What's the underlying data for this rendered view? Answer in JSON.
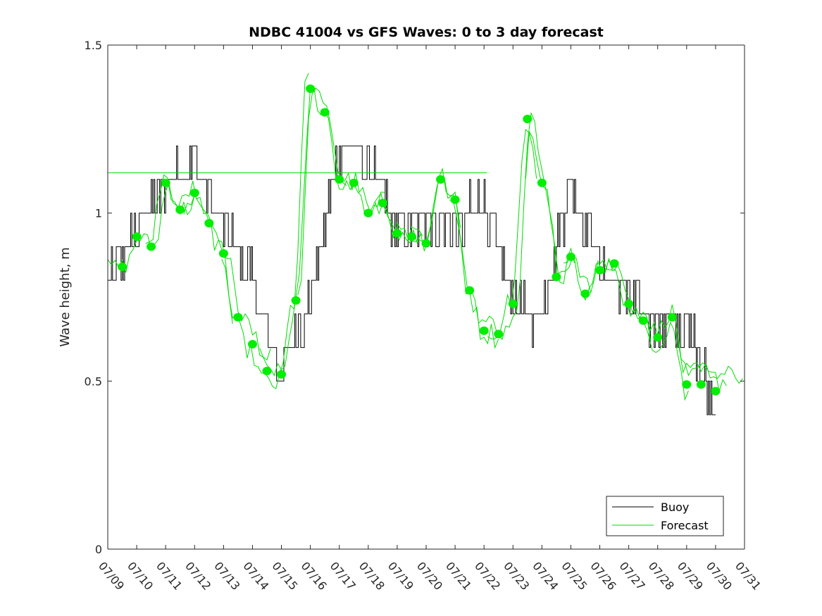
{
  "chart_data": {
    "type": "line",
    "title": "NDBC 41004 vs GFS Waves: 0 to 3 day forecast",
    "xlabel": "",
    "ylabel": "Wave height, m",
    "ylim": [
      0,
      1.5
    ],
    "yticks": [
      "0",
      "0.5",
      "1",
      "1.5"
    ],
    "xticks": [
      "07/09",
      "07/10",
      "07/11",
      "07/12",
      "07/13",
      "07/14",
      "07/15",
      "07/16",
      "07/17",
      "07/18",
      "07/19",
      "07/20",
      "07/21",
      "07/22",
      "07/23",
      "07/24",
      "07/25",
      "07/26",
      "07/27",
      "07/28",
      "07/29",
      "07/30",
      "07/31"
    ],
    "grid": false,
    "legend": {
      "position": "bottom-right",
      "entries": [
        "Buoy",
        "Forecast"
      ]
    },
    "colors": {
      "buoy": "#000000",
      "forecast": "#00dd00",
      "markers": "#00ee00"
    },
    "buoy_day_values": [
      0.77,
      0.95,
      1.1,
      1.15,
      0.95,
      0.8,
      0.52,
      0.75,
      1.2,
      1.15,
      0.95,
      1.0,
      0.95,
      1.05,
      0.72,
      0.7,
      1.1,
      0.85,
      0.75,
      0.68,
      0.65,
      0.45,
      0.5
    ],
    "forecast_markers": [
      {
        "x": 0.5,
        "y": 0.84
      },
      {
        "x": 1.0,
        "y": 0.93
      },
      {
        "x": 1.5,
        "y": 0.9
      },
      {
        "x": 2.0,
        "y": 1.09
      },
      {
        "x": 2.5,
        "y": 1.01
      },
      {
        "x": 3.0,
        "y": 1.06
      },
      {
        "x": 3.5,
        "y": 0.97
      },
      {
        "x": 4.0,
        "y": 0.88
      },
      {
        "x": 4.5,
        "y": 0.69
      },
      {
        "x": 5.0,
        "y": 0.61
      },
      {
        "x": 5.5,
        "y": 0.53
      },
      {
        "x": 6.0,
        "y": 0.52
      },
      {
        "x": 6.5,
        "y": 0.74
      },
      {
        "x": 7.0,
        "y": 1.37
      },
      {
        "x": 7.5,
        "y": 1.3
      },
      {
        "x": 8.0,
        "y": 1.1
      },
      {
        "x": 8.5,
        "y": 1.09
      },
      {
        "x": 9.0,
        "y": 1.0
      },
      {
        "x": 9.5,
        "y": 1.03
      },
      {
        "x": 10.0,
        "y": 0.94
      },
      {
        "x": 10.5,
        "y": 0.93
      },
      {
        "x": 11.0,
        "y": 0.91
      },
      {
        "x": 11.5,
        "y": 1.1
      },
      {
        "x": 12.0,
        "y": 1.04
      },
      {
        "x": 12.5,
        "y": 0.77
      },
      {
        "x": 13.0,
        "y": 0.65
      },
      {
        "x": 13.5,
        "y": 0.64
      },
      {
        "x": 14.0,
        "y": 0.73
      },
      {
        "x": 14.5,
        "y": 1.28
      },
      {
        "x": 15.0,
        "y": 1.09
      },
      {
        "x": 15.5,
        "y": 0.81
      },
      {
        "x": 16.0,
        "y": 0.87
      },
      {
        "x": 16.5,
        "y": 0.76
      },
      {
        "x": 17.0,
        "y": 0.83
      },
      {
        "x": 17.5,
        "y": 0.85
      },
      {
        "x": 18.0,
        "y": 0.73
      },
      {
        "x": 18.5,
        "y": 0.68
      },
      {
        "x": 19.0,
        "y": 0.63
      },
      {
        "x": 19.5,
        "y": 0.69
      },
      {
        "x": 20.0,
        "y": 0.49
      },
      {
        "x": 20.5,
        "y": 0.49
      },
      {
        "x": 21.0,
        "y": 0.47
      }
    ],
    "forecast_reference_line": 1.12
  }
}
